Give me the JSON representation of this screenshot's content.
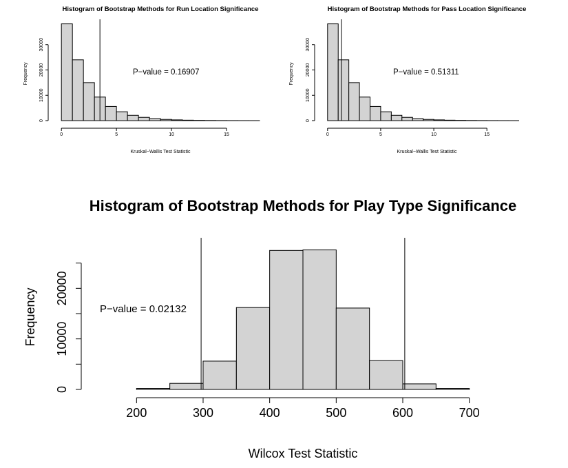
{
  "chart_data": [
    {
      "type": "bar",
      "title": "Histogram of Bootstrap Methods for Run Location Significance",
      "xlabel": "Kruskal−Wallis Test Statistic",
      "ylabel": "Frequency",
      "annotation": "P−value = 0.16907",
      "bin_width": 1,
      "x_start": 0,
      "values": [
        38200,
        24000,
        15000,
        9300,
        5600,
        3500,
        2100,
        1300,
        800,
        480,
        300,
        180,
        110,
        70,
        40,
        25,
        15,
        10
      ],
      "reference_line_x": 3.5,
      "xlim": [
        -0.7,
        18.5
      ],
      "ylim": [
        0,
        40000
      ],
      "xticks": [
        "0",
        "5",
        "10",
        "15"
      ],
      "xtick_values": [
        0,
        5,
        10,
        15
      ],
      "yticks": [
        "0",
        "10000",
        "20000",
        "30000"
      ],
      "ytick_values": [
        0,
        10000,
        20000,
        30000
      ]
    },
    {
      "type": "bar",
      "title": "Histogram of Bootstrap Methods for Pass Location Significance",
      "xlabel": "Kruskal−Wallis Test Statistic",
      "ylabel": "Frequency",
      "annotation": "P−value = 0.51311",
      "bin_width": 1,
      "x_start": 0,
      "values": [
        38200,
        24000,
        15000,
        9300,
        5600,
        3500,
        2100,
        1300,
        800,
        480,
        300,
        180,
        110,
        70,
        40,
        25,
        15,
        10
      ],
      "reference_line_x": 1.3,
      "xlim": [
        -0.7,
        19.2
      ],
      "ylim": [
        0,
        40000
      ],
      "xticks": [
        "0",
        "5",
        "10",
        "15"
      ],
      "xtick_values": [
        0,
        5,
        10,
        15
      ],
      "yticks": [
        "0",
        "10000",
        "20000",
        "30000"
      ],
      "ytick_values": [
        0,
        10000,
        20000,
        30000
      ]
    },
    {
      "type": "bar",
      "title": "Histogram of Bootstrap Methods for Play Type Significance",
      "xlabel": "Wilcox Test Statistic",
      "ylabel": "Frequency",
      "annotation": "P−value = 0.02132",
      "bin_width": 50,
      "x_start": 150,
      "values": [
        0,
        200,
        1200,
        5600,
        16200,
        27500,
        27600,
        16100,
        5700,
        1100,
        200,
        0
      ],
      "reference_lines_x": [
        297,
        603
      ],
      "xlim": [
        150,
        750
      ],
      "ylim": [
        0,
        30000
      ],
      "xticks": [
        "200",
        "300",
        "400",
        "500",
        "600",
        "700"
      ],
      "xtick_values": [
        200,
        300,
        400,
        500,
        600,
        700
      ],
      "yticks": [
        "0",
        "10000",
        "20000"
      ],
      "ytick_values": [
        0,
        10000,
        20000
      ],
      "extra_ytick_marks": [
        5000,
        15000,
        25000
      ]
    }
  ]
}
